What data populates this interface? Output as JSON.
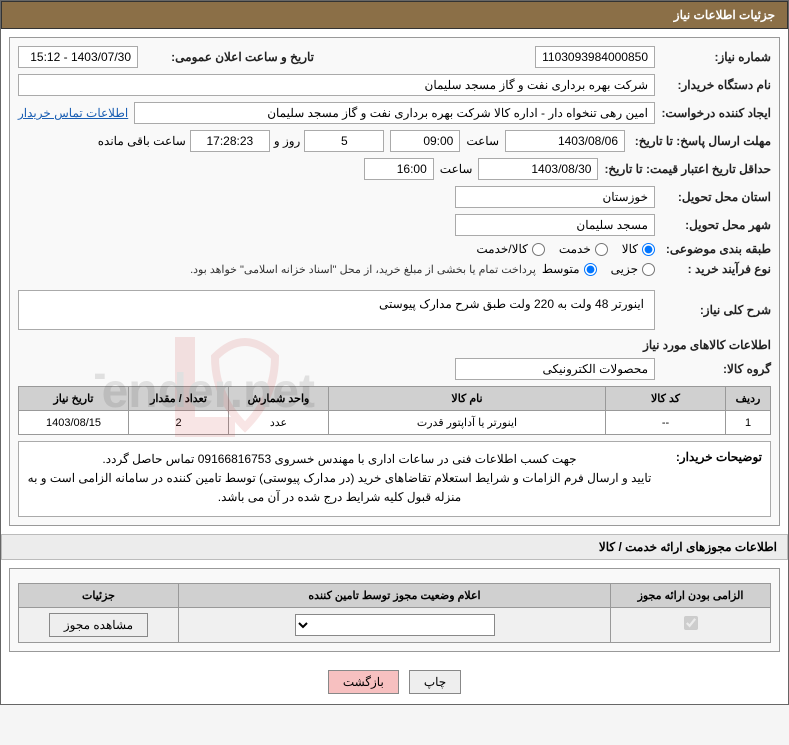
{
  "header": {
    "title": "جزئیات اطلاعات نیاز"
  },
  "need": {
    "number_label": "شماره نیاز:",
    "number": "1103093984000850",
    "announce_label": "تاریخ و ساعت اعلان عمومی:",
    "announce": "1403/07/30 - 15:12",
    "buyer_org_label": "نام دستگاه خریدار:",
    "buyer_org": "شرکت بهره برداری نفت و گاز مسجد سلیمان",
    "requester_label": "ایجاد کننده درخواست:",
    "requester": "امین رهی تنخواه دار - اداره کالا  شرکت بهره برداری نفت و گاز مسجد سلیمان",
    "contact_link": "اطلاعات تماس خریدار",
    "deadline_label": "مهلت ارسال پاسخ: تا تاریخ:",
    "deadline_date": "1403/08/06",
    "time_label": "ساعت",
    "deadline_time": "09:00",
    "remaining_days": "5",
    "days_word": "روز و",
    "remaining_time": "17:28:23",
    "remaining_suffix": "ساعت باقی مانده",
    "validity_label": "حداقل تاریخ اعتبار قیمت: تا تاریخ:",
    "validity_date": "1403/08/30",
    "validity_time": "16:00",
    "province_label": "استان محل تحویل:",
    "province": "خوزستان",
    "city_label": "شهر محل تحویل:",
    "city": "مسجد سلیمان",
    "category_label": "طبقه بندی موضوعی:",
    "category_options": [
      "کالا",
      "خدمت",
      "کالا/خدمت"
    ],
    "category_selected": 0,
    "process_label": "نوع فرآیند خرید :",
    "process_options": [
      "جزیی",
      "متوسط"
    ],
    "process_selected": 1,
    "payment_note": "پرداخت تمام یا بخشی از مبلغ خرید، از محل \"اسناد خزانه اسلامی\" خواهد بود.",
    "summary_label": "شرح کلی نیاز:",
    "summary": "اینورتر 48 ولت به 220 ولت طبق شرح مدارک پیوستی"
  },
  "goods": {
    "heading": "اطلاعات کالاهای مورد نیاز",
    "group_label": "گروه کالا:",
    "group": "محصولات الکترونیکی",
    "columns": [
      "ردیف",
      "کد کالا",
      "نام کالا",
      "واحد شمارش",
      "تعداد / مقدار",
      "تاریخ نیاز"
    ],
    "rows": [
      [
        "1",
        "--",
        "اینورتر یا آداپتور قدرت",
        "عدد",
        "2",
        "1403/08/15"
      ]
    ],
    "buyer_notes_label": "توضیحات خریدار:",
    "buyer_notes": "جهت کسب اطلاعات فنی در ساعات اداری با مهندس خسروی 09166816753 تماس حاصل گردد.\nتایید و ارسال فرم الزامات و شرایط استعلام تقاضاهای خرید (در مدارک پیوستی) توسط تامین کننده در سامانه الزامی است و به منزله قبول کلیه شرایط درج شده در آن می باشد."
  },
  "permits": {
    "heading": "اطلاعات مجوزهای ارائه خدمت / کالا",
    "columns": [
      "الزامی بودن ارائه مجوز",
      "اعلام وضعیت مجوز توسط تامین کننده",
      "جزئیات"
    ],
    "mandatory_checked": true,
    "details_btn": "مشاهده مجوز"
  },
  "footer": {
    "print": "چاپ",
    "back": "بازگشت"
  }
}
